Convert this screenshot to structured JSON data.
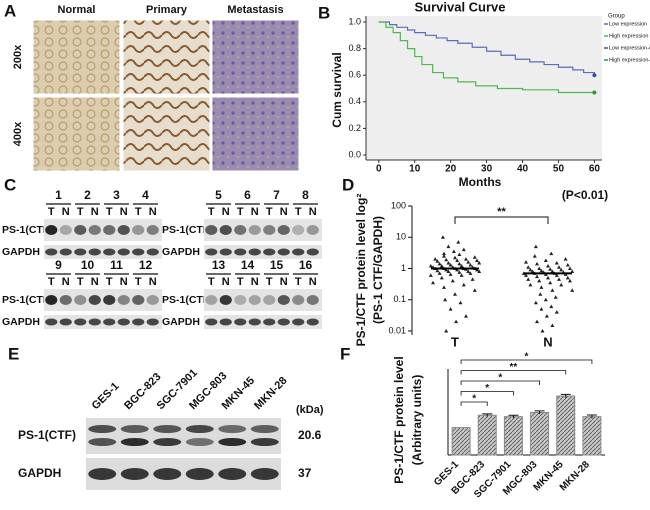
{
  "panel_labels": [
    "A",
    "B",
    "C",
    "D",
    "E",
    "F"
  ],
  "histology": {
    "columns": [
      "Normal",
      "Primary",
      "Metastasis"
    ],
    "rows": [
      "200x",
      "400x"
    ]
  },
  "blot_c": {
    "blocks": [
      [
        "1",
        "2",
        "3",
        "4"
      ],
      [
        "5",
        "6",
        "7",
        "8"
      ],
      [
        "9",
        "10",
        "11",
        "12"
      ],
      [
        "13",
        "14",
        "15",
        "16"
      ]
    ],
    "lanes": [
      "T",
      "N"
    ],
    "bands": [
      "PS-1(CTF)",
      "GAPDH"
    ]
  },
  "blot_e": {
    "cell_lines": [
      "GES-1",
      "BGC-823",
      "SGC-7901",
      "MGC-803",
      "MKN-45",
      "MKN-28"
    ],
    "unit": "(kDa)",
    "bands": [
      {
        "label": "PS-1(CTF)",
        "kda": 20.6
      },
      {
        "label": "GAPDH",
        "kda": 37
      }
    ]
  },
  "chart_data": [
    {
      "type": "line",
      "title": "Survival Curve",
      "xlabel": "Months",
      "ylabel": "Cum survival",
      "xlim": [
        -3,
        61
      ],
      "xticks": [
        0,
        10,
        20,
        30,
        40,
        50,
        60
      ],
      "ylim": [
        0,
        1.0
      ],
      "yticks": [
        {
          "value": 0,
          "label": "0.0"
        },
        {
          "value": 0.2,
          "label": "0.2"
        },
        {
          "value": 0.4,
          "label": "0.4"
        },
        {
          "value": 0.6,
          "label": "0.6"
        },
        {
          "value": 0.8,
          "label": "0.8"
        },
        {
          "value": 1.0,
          "label": "1.0"
        }
      ],
      "legend_title": "Group",
      "legend": "outside-right",
      "series": [
        {
          "name": "Low expression",
          "color": "#5b6fb8",
          "line_style": "step",
          "x": [
            0,
            3,
            5,
            8,
            10,
            13,
            16,
            19,
            22,
            26,
            30,
            34,
            38,
            42,
            46,
            50,
            54,
            57,
            60
          ],
          "values": [
            1.0,
            0.98,
            0.96,
            0.94,
            0.92,
            0.9,
            0.88,
            0.86,
            0.84,
            0.81,
            0.78,
            0.75,
            0.72,
            0.7,
            0.68,
            0.66,
            0.64,
            0.62,
            0.6
          ]
        },
        {
          "name": "High expression",
          "color": "#4fb84f",
          "line_style": "step",
          "x": [
            0,
            2,
            4,
            6,
            8,
            10,
            12,
            15,
            18,
            22,
            27,
            33,
            40,
            50,
            60
          ],
          "values": [
            1.0,
            0.96,
            0.92,
            0.86,
            0.8,
            0.74,
            0.68,
            0.62,
            0.58,
            0.55,
            0.52,
            0.5,
            0.49,
            0.47,
            0.47
          ]
        },
        {
          "name": "Low expression-delete",
          "color": "#3a4fa0",
          "line_style": "dot",
          "x": [
            60
          ],
          "values": [
            0.6
          ]
        },
        {
          "name": "High expression-delete",
          "color": "#2f9a2f",
          "line_style": "dot",
          "x": [
            60
          ],
          "values": [
            0.47
          ]
        }
      ]
    },
    {
      "type": "scatter",
      "ylabel": [
        "PS-1/CTF protein level log²",
        "(PS-1 CTF/GAPDH)"
      ],
      "categories": [
        "T",
        "N"
      ],
      "log": true,
      "ylim": [
        0.01,
        100
      ],
      "yticks": [
        0.01,
        0.1,
        1,
        10,
        100
      ],
      "annotations": [
        "**",
        "(P<0.01)"
      ],
      "medians": [
        1.0,
        0.7
      ],
      "color": "#222222",
      "series": [
        {
          "values": [
            10,
            7,
            5,
            4,
            3.5,
            3,
            2.8,
            2.5,
            2.3,
            2.2,
            2,
            2,
            1.9,
            1.8,
            1.8,
            1.7,
            1.6,
            1.5,
            1.5,
            1.4,
            1.4,
            1.3,
            1.3,
            1.2,
            1.2,
            1.2,
            1.1,
            1.1,
            1.1,
            1,
            1,
            1,
            1,
            1,
            0.95,
            0.9,
            0.9,
            0.9,
            0.85,
            0.8,
            0.8,
            0.8,
            0.75,
            0.7,
            0.7,
            0.65,
            0.6,
            0.6,
            0.5,
            0.45,
            0.4,
            0.35,
            0.3,
            0.25,
            0.2,
            0.15,
            0.1,
            0.08,
            0.05,
            0.03,
            0.02,
            0.01
          ]
        },
        {
          "values": [
            5,
            3,
            2.5,
            2,
            1.8,
            1.6,
            1.5,
            1.4,
            1.3,
            1.2,
            1.1,
            1.1,
            1,
            1,
            0.95,
            0.9,
            0.9,
            0.85,
            0.8,
            0.8,
            0.8,
            0.75,
            0.75,
            0.7,
            0.7,
            0.7,
            0.65,
            0.65,
            0.6,
            0.6,
            0.55,
            0.5,
            0.5,
            0.45,
            0.45,
            0.4,
            0.4,
            0.35,
            0.3,
            0.3,
            0.25,
            0.2,
            0.2,
            0.15,
            0.12,
            0.1,
            0.08,
            0.06,
            0.05,
            0.04,
            0.03,
            0.02,
            0.015,
            0.01
          ]
        }
      ]
    },
    {
      "type": "bar",
      "ylabel": [
        "PS-1/CTF protein level",
        "(Arbitrary units)"
      ],
      "categories": [
        "GES-1",
        "BGC-823",
        "SGC-7901",
        "MGC-803",
        "MKN-45",
        "MKN-28"
      ],
      "values": [
        1.0,
        1.45,
        1.4,
        1.55,
        2.15,
        1.4
      ],
      "errors": [
        0,
        0.05,
        0.05,
        0.06,
        0.06,
        0.06
      ],
      "significance": [
        null,
        "*",
        "*",
        "*",
        "**",
        "*"
      ],
      "ylim": [
        0,
        3.5
      ],
      "color": "#8a8a8a"
    }
  ]
}
